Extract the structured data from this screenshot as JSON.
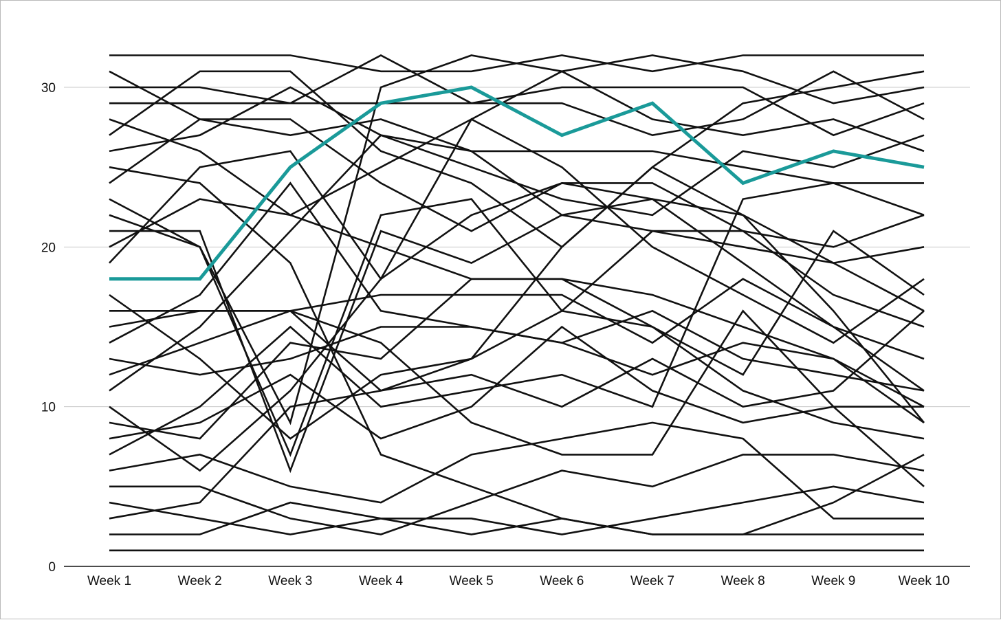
{
  "chart_data": {
    "type": "line",
    "title": "",
    "xlabel": "",
    "ylabel": "",
    "categories": [
      "Week 1",
      "Week 2",
      "Week 3",
      "Week 4",
      "Week 5",
      "Week 6",
      "Week 7",
      "Week 8",
      "Week 9",
      "Week 10"
    ],
    "ylim": [
      0,
      32
    ],
    "yticks": [
      0,
      10,
      20,
      30
    ],
    "grid": true,
    "legend": "none",
    "colors": {
      "default": "#111111",
      "highlight": "#1a9a99",
      "grid": "#c8c8c8"
    },
    "highlight_series_index": 31,
    "series": [
      {
        "values": [
          32,
          32,
          32,
          31,
          31,
          32,
          31,
          32,
          32,
          32
        ]
      },
      {
        "values": [
          31,
          28,
          27,
          28,
          26,
          26,
          26,
          25,
          24,
          24
        ]
      },
      {
        "values": [
          30,
          30,
          29,
          29,
          29,
          30,
          30,
          30,
          27,
          29
        ]
      },
      {
        "values": [
          29,
          29,
          29,
          32,
          29,
          29,
          27,
          28,
          31,
          28
        ]
      },
      {
        "values": [
          28,
          26,
          22,
          25,
          28,
          31,
          32,
          31,
          29,
          30
        ]
      },
      {
        "values": [
          27,
          31,
          31,
          26,
          24,
          20,
          25,
          29,
          30,
          31
        ]
      },
      {
        "values": [
          26,
          27,
          30,
          27,
          25,
          23,
          22,
          26,
          25,
          27
        ]
      },
      {
        "values": [
          25,
          24,
          19,
          7,
          5,
          3,
          2,
          2,
          2,
          2
        ]
      },
      {
        "values": [
          24,
          28,
          28,
          24,
          21,
          24,
          24,
          21,
          17,
          15
        ]
      },
      {
        "values": [
          23,
          20,
          9,
          30,
          32,
          31,
          28,
          27,
          28,
          26
        ]
      },
      {
        "values": [
          22,
          20,
          7,
          22,
          23,
          16,
          21,
          21,
          20,
          22
        ]
      },
      {
        "values": [
          21,
          21,
          6,
          21,
          19,
          22,
          23,
          19,
          15,
          13
        ]
      },
      {
        "values": [
          20,
          23,
          22,
          20,
          18,
          18,
          15,
          12,
          21,
          17
        ]
      },
      {
        "values": [
          19,
          25,
          26,
          18,
          28,
          25,
          20,
          17,
          14,
          18
        ]
      },
      {
        "values": [
          17,
          13,
          8,
          12,
          13,
          20,
          25,
          22,
          16,
          9
        ]
      },
      {
        "values": [
          16,
          16,
          16,
          11,
          12,
          10,
          13,
          10,
          11,
          16
        ]
      },
      {
        "values": [
          15,
          16,
          16,
          17,
          17,
          17,
          14,
          18,
          15,
          11
        ]
      },
      {
        "values": [
          14,
          17,
          24,
          16,
          15,
          14,
          16,
          13,
          12,
          11
        ]
      },
      {
        "values": [
          13,
          12,
          13,
          15,
          15,
          14,
          12,
          14,
          13,
          10
        ]
      },
      {
        "values": [
          12,
          14,
          16,
          14,
          9,
          7,
          7,
          16,
          10,
          5
        ]
      },
      {
        "values": [
          11,
          15,
          21,
          27,
          26,
          22,
          21,
          20,
          19,
          20
        ]
      },
      {
        "values": [
          10,
          6,
          11,
          18,
          22,
          24,
          23,
          22,
          19,
          16
        ]
      },
      {
        "values": [
          9,
          8,
          14,
          13,
          18,
          18,
          17,
          15,
          13,
          9
        ]
      },
      {
        "values": [
          8,
          9,
          12,
          8,
          10,
          15,
          11,
          9,
          10,
          10
        ]
      },
      {
        "values": [
          7,
          10,
          15,
          10,
          11,
          12,
          10,
          23,
          24,
          22
        ]
      },
      {
        "values": [
          6,
          7,
          5,
          4,
          7,
          8,
          9,
          8,
          3,
          3
        ]
      },
      {
        "values": [
          5,
          5,
          3,
          2,
          4,
          6,
          5,
          7,
          7,
          6
        ]
      },
      {
        "values": [
          4,
          3,
          2,
          3,
          3,
          2,
          3,
          4,
          5,
          4
        ]
      },
      {
        "values": [
          3,
          4,
          10,
          11,
          13,
          16,
          15,
          11,
          9,
          8
        ]
      },
      {
        "values": [
          2,
          2,
          4,
          3,
          2,
          3,
          2,
          2,
          4,
          7
        ]
      },
      {
        "values": [
          1,
          1,
          1,
          1,
          1,
          1,
          1,
          1,
          1,
          1
        ]
      },
      {
        "values": [
          18,
          18,
          25,
          29,
          30,
          27,
          29,
          24,
          26,
          25
        ]
      }
    ]
  }
}
